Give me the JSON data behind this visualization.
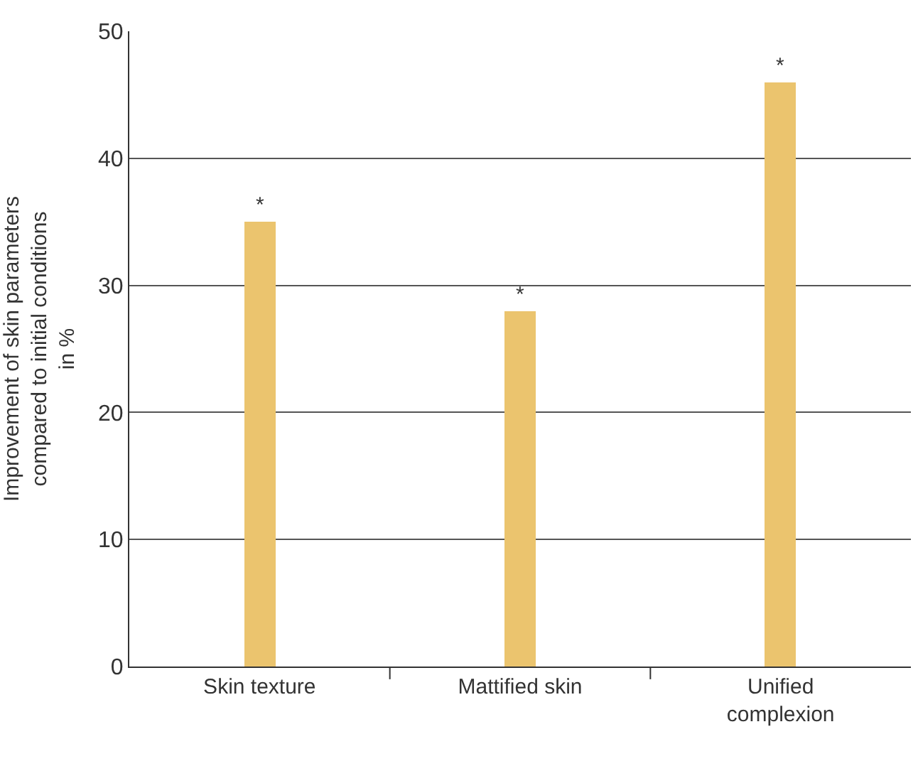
{
  "chart_data": {
    "type": "bar",
    "ylabel": "Improvement of skin parameters compared to initial conditions in %",
    "categories": [
      "Skin texture",
      "Mattified skin",
      "Unified complexion"
    ],
    "values": [
      35,
      28,
      46
    ],
    "value_labels": [
      "*",
      "*",
      "*"
    ],
    "color": "#ebc46e",
    "ylim": [
      0,
      50
    ],
    "yticks": [
      0,
      10,
      20,
      30,
      40,
      50
    ],
    "grid": "y",
    "legend": false
  }
}
